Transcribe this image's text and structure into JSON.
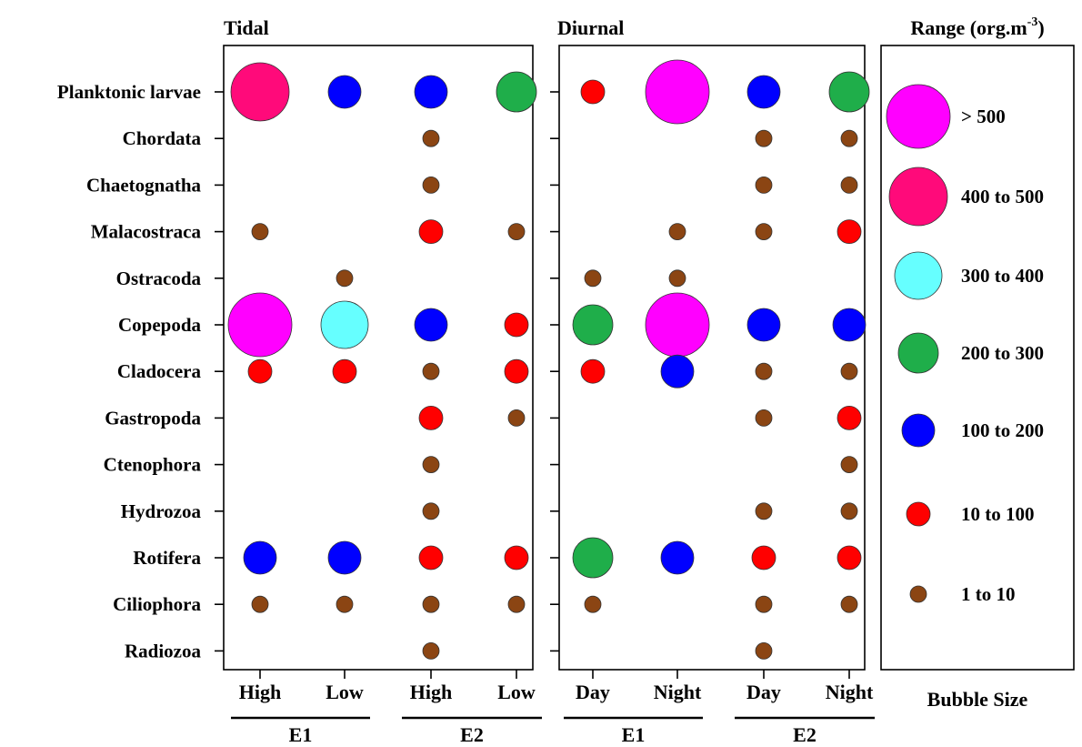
{
  "chart_data": [
    {
      "type": "scatter",
      "panel_title": "Tidal",
      "categories_y": [
        "Planktonic larvae",
        "Chordata",
        "Chaetognatha",
        "Malacostraca",
        "Ostracoda",
        "Copepoda",
        "Cladocera",
        "Gastropoda",
        "Ctenophora",
        "Hydrozoa",
        "Rotifera",
        "Ciliophora",
        "Radiozoa"
      ],
      "x_ticks": [
        "High",
        "Low",
        "High",
        "Low"
      ],
      "x_groups": [
        {
          "label": "E1",
          "span": [
            0,
            1
          ]
        },
        {
          "label": "E2",
          "span": [
            2,
            3
          ]
        }
      ],
      "points": [
        {
          "row": "Planktonic larvae",
          "col": 0,
          "range": "400 to 500"
        },
        {
          "row": "Planktonic larvae",
          "col": 1,
          "range": "100 to 200"
        },
        {
          "row": "Planktonic larvae",
          "col": 2,
          "range": "100 to 200"
        },
        {
          "row": "Planktonic larvae",
          "col": 3,
          "range": "200 to 300"
        },
        {
          "row": "Chordata",
          "col": 2,
          "range": "1 to 10"
        },
        {
          "row": "Chaetognatha",
          "col": 2,
          "range": "1 to 10"
        },
        {
          "row": "Malacostraca",
          "col": 0,
          "range": "1 to 10"
        },
        {
          "row": "Malacostraca",
          "col": 2,
          "range": "10 to 100"
        },
        {
          "row": "Malacostraca",
          "col": 3,
          "range": "1 to 10"
        },
        {
          "row": "Ostracoda",
          "col": 1,
          "range": "1 to 10"
        },
        {
          "row": "Copepoda",
          "col": 0,
          "range": "> 500"
        },
        {
          "row": "Copepoda",
          "col": 1,
          "range": "300 to 400"
        },
        {
          "row": "Copepoda",
          "col": 2,
          "range": "100 to 200"
        },
        {
          "row": "Copepoda",
          "col": 3,
          "range": "10 to 100"
        },
        {
          "row": "Cladocera",
          "col": 0,
          "range": "10 to 100"
        },
        {
          "row": "Cladocera",
          "col": 1,
          "range": "10 to 100"
        },
        {
          "row": "Cladocera",
          "col": 2,
          "range": "1 to 10"
        },
        {
          "row": "Cladocera",
          "col": 3,
          "range": "10 to 100"
        },
        {
          "row": "Gastropoda",
          "col": 2,
          "range": "10 to 100"
        },
        {
          "row": "Gastropoda",
          "col": 3,
          "range": "1 to 10"
        },
        {
          "row": "Ctenophora",
          "col": 2,
          "range": "1 to 10"
        },
        {
          "row": "Hydrozoa",
          "col": 2,
          "range": "1 to 10"
        },
        {
          "row": "Rotifera",
          "col": 0,
          "range": "100 to 200"
        },
        {
          "row": "Rotifera",
          "col": 1,
          "range": "100 to 200"
        },
        {
          "row": "Rotifera",
          "col": 2,
          "range": "10 to 100"
        },
        {
          "row": "Rotifera",
          "col": 3,
          "range": "10 to 100"
        },
        {
          "row": "Ciliophora",
          "col": 0,
          "range": "1 to 10"
        },
        {
          "row": "Ciliophora",
          "col": 1,
          "range": "1 to 10"
        },
        {
          "row": "Ciliophora",
          "col": 2,
          "range": "1 to 10"
        },
        {
          "row": "Ciliophora",
          "col": 3,
          "range": "1 to 10"
        },
        {
          "row": "Radiozoa",
          "col": 2,
          "range": "1 to 10"
        }
      ]
    },
    {
      "type": "scatter",
      "panel_title": "Diurnal",
      "categories_y": [
        "Planktonic larvae",
        "Chordata",
        "Chaetognatha",
        "Malacostraca",
        "Ostracoda",
        "Copepoda",
        "Cladocera",
        "Gastropoda",
        "Ctenophora",
        "Hydrozoa",
        "Rotifera",
        "Ciliophora",
        "Radiozoa"
      ],
      "x_ticks": [
        "Day",
        "Night",
        "Day",
        "Night"
      ],
      "x_groups": [
        {
          "label": "E1",
          "span": [
            0,
            1
          ]
        },
        {
          "label": "E2",
          "span": [
            2,
            3
          ]
        }
      ],
      "points": [
        {
          "row": "Planktonic larvae",
          "col": 0,
          "range": "10 to 100"
        },
        {
          "row": "Planktonic larvae",
          "col": 1,
          "range": "> 500"
        },
        {
          "row": "Planktonic larvae",
          "col": 2,
          "range": "100 to 200"
        },
        {
          "row": "Planktonic larvae",
          "col": 3,
          "range": "200 to 300"
        },
        {
          "row": "Chordata",
          "col": 2,
          "range": "1 to 10"
        },
        {
          "row": "Chordata",
          "col": 3,
          "range": "1 to 10"
        },
        {
          "row": "Chaetognatha",
          "col": 2,
          "range": "1 to 10"
        },
        {
          "row": "Chaetognatha",
          "col": 3,
          "range": "1 to 10"
        },
        {
          "row": "Malacostraca",
          "col": 1,
          "range": "1 to 10"
        },
        {
          "row": "Malacostraca",
          "col": 2,
          "range": "1 to 10"
        },
        {
          "row": "Malacostraca",
          "col": 3,
          "range": "10 to 100"
        },
        {
          "row": "Ostracoda",
          "col": 0,
          "range": "1 to 10"
        },
        {
          "row": "Ostracoda",
          "col": 1,
          "range": "1 to 10"
        },
        {
          "row": "Copepoda",
          "col": 0,
          "range": "200 to 300"
        },
        {
          "row": "Copepoda",
          "col": 1,
          "range": "> 500"
        },
        {
          "row": "Copepoda",
          "col": 2,
          "range": "100 to 200"
        },
        {
          "row": "Copepoda",
          "col": 3,
          "range": "100 to 200"
        },
        {
          "row": "Cladocera",
          "col": 0,
          "range": "10 to 100"
        },
        {
          "row": "Cladocera",
          "col": 1,
          "range": "100 to 200"
        },
        {
          "row": "Cladocera",
          "col": 2,
          "range": "1 to 10"
        },
        {
          "row": "Cladocera",
          "col": 3,
          "range": "1 to 10"
        },
        {
          "row": "Gastropoda",
          "col": 2,
          "range": "1 to 10"
        },
        {
          "row": "Gastropoda",
          "col": 3,
          "range": "10 to 100"
        },
        {
          "row": "Ctenophora",
          "col": 3,
          "range": "1 to 10"
        },
        {
          "row": "Hydrozoa",
          "col": 2,
          "range": "1 to 10"
        },
        {
          "row": "Hydrozoa",
          "col": 3,
          "range": "1 to 10"
        },
        {
          "row": "Rotifera",
          "col": 0,
          "range": "200 to 300"
        },
        {
          "row": "Rotifera",
          "col": 1,
          "range": "100 to 200"
        },
        {
          "row": "Rotifera",
          "col": 2,
          "range": "10 to 100"
        },
        {
          "row": "Rotifera",
          "col": 3,
          "range": "10 to 100"
        },
        {
          "row": "Ciliophora",
          "col": 0,
          "range": "1 to 10"
        },
        {
          "row": "Ciliophora",
          "col": 2,
          "range": "1 to 10"
        },
        {
          "row": "Ciliophora",
          "col": 3,
          "range": "1 to 10"
        },
        {
          "row": "Radiozoa",
          "col": 2,
          "range": "1 to 10"
        }
      ]
    }
  ],
  "legend": {
    "title_main": "Range (org.m",
    "title_sup": "-3",
    "title_close": ")",
    "footer": "Bubble Size",
    "placement": "right",
    "entries": [
      {
        "label": "> 500",
        "color": "#ff00ff"
      },
      {
        "label": "400 to 500",
        "color": "#ff0a7a"
      },
      {
        "label": "300 to 400",
        "color": "#66ffff"
      },
      {
        "label": "200 to 300",
        "color": "#1fae4a"
      },
      {
        "label": "100 to 200",
        "color": "#0000ff"
      },
      {
        "label": "10 to 100",
        "color": "#ff0000"
      },
      {
        "label": "1 to 10",
        "color": "#8b4513"
      }
    ]
  }
}
